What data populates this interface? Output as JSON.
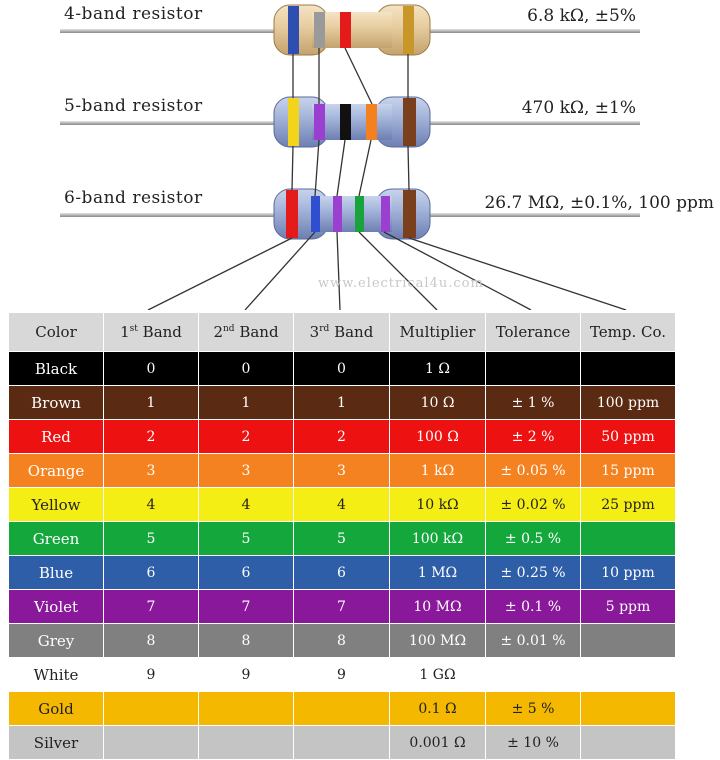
{
  "resistors": [
    {
      "label": "4-band resistor",
      "value": "6.8 kΩ, ±5%"
    },
    {
      "label": "5-band resistor",
      "value": "470 kΩ, ±1%"
    },
    {
      "label": "6-band resistor",
      "value": "26.7 MΩ, ±0.1%, 100 ppm"
    }
  ],
  "watermark": "www.electrical4u.com",
  "table": {
    "headers": {
      "color": "Color",
      "band1": "1st Band",
      "band1_num": "1",
      "band1_sup": "st",
      "band_word": "Band",
      "band2_num": "2",
      "band2_sup": "nd",
      "band3_num": "3",
      "band3_sup": "rd",
      "multiplier": "Multiplier",
      "tolerance": "Tolerance",
      "tempco": "Temp. Co."
    },
    "rows": [
      {
        "name": "Black",
        "band1": "0",
        "band2": "0",
        "band3": "0",
        "multiplier": "1 Ω",
        "tolerance": "",
        "tempco": "",
        "bg": "#000000",
        "fg": "#ffffff"
      },
      {
        "name": "Brown",
        "band1": "1",
        "band2": "1",
        "band3": "1",
        "multiplier": "10 Ω",
        "tolerance": "± 1 %",
        "tempco": "100 ppm",
        "bg": "#5a2a12",
        "fg": "#ffffff"
      },
      {
        "name": "Red",
        "band1": "2",
        "band2": "2",
        "band3": "2",
        "multiplier": "100 Ω",
        "tolerance": "± 2 %",
        "tempco": "50 ppm",
        "bg": "#ee1111",
        "fg": "#ffffff"
      },
      {
        "name": "Orange",
        "band1": "3",
        "band2": "3",
        "band3": "3",
        "multiplier": "1 kΩ",
        "tolerance": "± 0.05 %",
        "tempco": "15 ppm",
        "bg": "#f58220",
        "fg": "#ffffff"
      },
      {
        "name": "Yellow",
        "band1": "4",
        "band2": "4",
        "band3": "4",
        "multiplier": "10 kΩ",
        "tolerance": "± 0.02 %",
        "tempco": "25 ppm",
        "bg": "#f5ee14",
        "fg": "#222222"
      },
      {
        "name": "Green",
        "band1": "5",
        "band2": "5",
        "band3": "5",
        "multiplier": "100 kΩ",
        "tolerance": "± 0.5 %",
        "tempco": "",
        "bg": "#14a83c",
        "fg": "#ffffff"
      },
      {
        "name": "Blue",
        "band1": "6",
        "band2": "6",
        "band3": "6",
        "multiplier": "1 MΩ",
        "tolerance": "± 0.25 %",
        "tempco": "10 ppm",
        "bg": "#2e5ea8",
        "fg": "#ffffff"
      },
      {
        "name": "Violet",
        "band1": "7",
        "band2": "7",
        "band3": "7",
        "multiplier": "10 MΩ",
        "tolerance": "± 0.1 %",
        "tempco": "5 ppm",
        "bg": "#8a189a",
        "fg": "#ffffff"
      },
      {
        "name": "Grey",
        "band1": "8",
        "band2": "8",
        "band3": "8",
        "multiplier": "100 MΩ",
        "tolerance": "± 0.01 %",
        "tempco": "",
        "bg": "#808080",
        "fg": "#ffffff"
      },
      {
        "name": "White",
        "band1": "9",
        "band2": "9",
        "band3": "9",
        "multiplier": "1 GΩ",
        "tolerance": "",
        "tempco": "",
        "bg": "#ffffff",
        "fg": "#222222"
      },
      {
        "name": "Gold",
        "band1": "",
        "band2": "",
        "band3": "",
        "multiplier": "0.1 Ω",
        "tolerance": "± 5 %",
        "tempco": "",
        "bg": "#f5b800",
        "fg": "#222222"
      },
      {
        "name": "Silver",
        "band1": "",
        "band2": "",
        "band3": "",
        "multiplier": "0.001 Ω",
        "tolerance": "± 10 %",
        "tempco": "",
        "bg": "#c4c4c4",
        "fg": "#222222"
      }
    ]
  }
}
